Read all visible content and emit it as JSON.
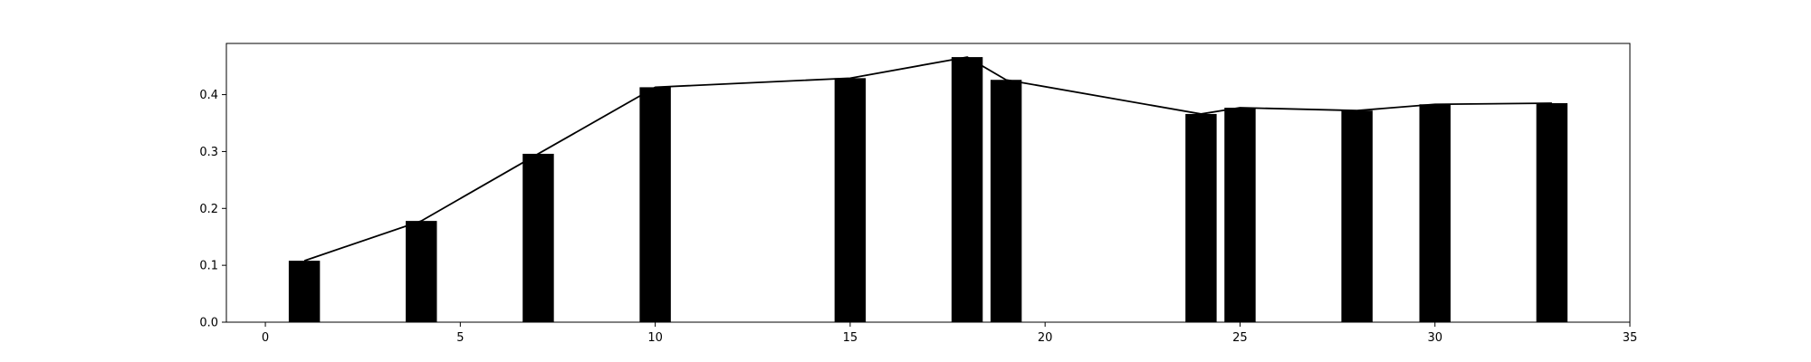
{
  "chart_data": {
    "type": "bar",
    "title": "",
    "xlabel": "",
    "ylabel": "",
    "x": [
      1,
      4,
      7,
      10,
      15,
      18,
      19,
      24,
      25,
      28,
      30,
      33
    ],
    "values": [
      0.108,
      0.178,
      0.296,
      0.413,
      0.429,
      0.466,
      0.426,
      0.366,
      0.377,
      0.372,
      0.383,
      0.385
    ],
    "line_values": [
      0.108,
      0.178,
      0.296,
      0.413,
      0.429,
      0.466,
      0.426,
      0.366,
      0.377,
      0.372,
      0.383,
      0.385
    ],
    "xlim": [
      -1,
      35
    ],
    "ylim": [
      0,
      0.49
    ],
    "xticks": [
      0,
      5,
      10,
      15,
      20,
      25,
      30,
      35
    ],
    "yticks": [
      0.0,
      0.1,
      0.2,
      0.3,
      0.4
    ],
    "xtick_labels": [
      "0",
      "5",
      "10",
      "15",
      "20",
      "25",
      "30",
      "35"
    ],
    "ytick_labels": [
      "0.0",
      "0.1",
      "0.2",
      "0.3",
      "0.4"
    ],
    "bar_width": 0.8,
    "grid": false,
    "legend": null,
    "colors": {
      "bar": "#000000",
      "line": "#000000",
      "axes": "#000000",
      "background": "#ffffff"
    }
  }
}
